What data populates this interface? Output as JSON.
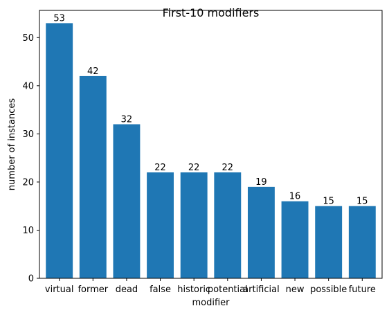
{
  "chart_data": {
    "type": "bar",
    "title": "First-10 modifiers",
    "xlabel": "modifier",
    "ylabel": "number of instances",
    "categories": [
      "virtual",
      "former",
      "dead",
      "false",
      "historic",
      "potential",
      "artificial",
      "new",
      "possible",
      "future"
    ],
    "values": [
      53,
      42,
      32,
      22,
      22,
      22,
      19,
      16,
      15,
      15
    ],
    "ylim": [
      0,
      55.65
    ],
    "yticks": [
      0,
      10,
      20,
      30,
      40,
      50
    ],
    "grid": false,
    "bar_color": "#1f77b4"
  }
}
